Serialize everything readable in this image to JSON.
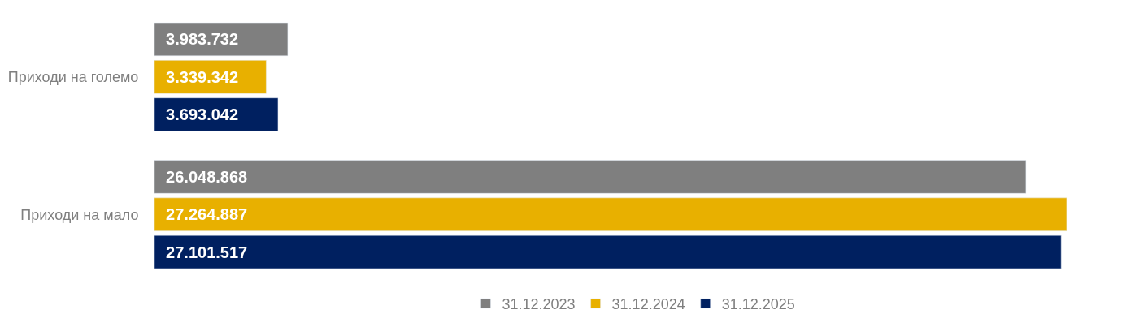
{
  "chart_data": {
    "type": "bar",
    "orientation": "horizontal",
    "categories": [
      "Приходи на големо",
      "Приходи на мало"
    ],
    "series": [
      {
        "name": "31.12.2023",
        "color": "#7f7f7f",
        "values": [
          3983732,
          26048868
        ],
        "value_labels": [
          "3.983.732",
          "26.048.868"
        ]
      },
      {
        "name": "31.12.2024",
        "color": "#e8b000",
        "values": [
          3339342,
          27264887
        ],
        "value_labels": [
          "3.339.342",
          "27.264.887"
        ]
      },
      {
        "name": "31.12.2025",
        "color": "#002060",
        "values": [
          3693042,
          27101517
        ],
        "value_labels": [
          "3.693.042",
          "27.101.517"
        ]
      }
    ],
    "legend": "bottom",
    "tick_labels": "y"
  }
}
